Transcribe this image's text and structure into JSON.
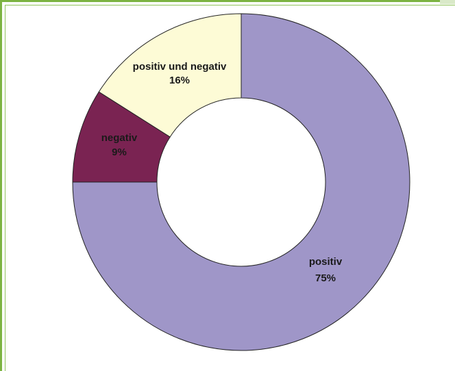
{
  "chart_data": {
    "type": "pie",
    "style": "donut",
    "title": "",
    "slices": [
      {
        "label": "positiv",
        "value": 75,
        "value_label": "75%",
        "color": "#9f96c8"
      },
      {
        "label": "negativ",
        "value": 9,
        "value_label": "9%",
        "color": "#7a2352"
      },
      {
        "label": "positiv und negativ",
        "value": 16,
        "value_label": "16%",
        "color": "#fdfbd6"
      }
    ],
    "start_angle": "12 o'clock",
    "direction": "clockwise",
    "legend": "none"
  },
  "colors": {
    "frame_border": "#7cb342",
    "slice_outline": "#222222",
    "background": "#ffffff"
  }
}
